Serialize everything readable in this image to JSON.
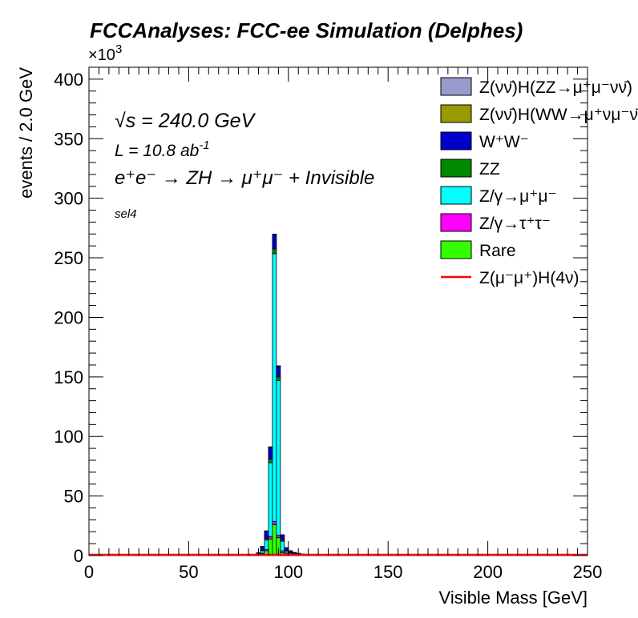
{
  "title": "FCCAnalyses: FCC-ee Simulation (Delphes)",
  "annotations": {
    "sqrt_s_symbol": "√s",
    "sqrt_s_value": " = 240.0 GeV",
    "lumi_label": "L = 10.8 ab",
    "lumi_exp": "-1",
    "process_text": "e⁺e⁻ → ZH → μ⁺μ⁻ + Invisible",
    "selection": "sel4"
  },
  "chart_data": {
    "type": "bar",
    "stacked": true,
    "xlabel": "Visible Mass [GeV]",
    "ylabel": "events / 2.0 GeV",
    "y_multiplier": "×10",
    "y_multiplier_exp": "3",
    "xlim": [
      0,
      250
    ],
    "ylim": [
      0,
      410000
    ],
    "bin_width": 2,
    "x_ticks": [
      0,
      50,
      100,
      150,
      200,
      250
    ],
    "y_ticks": [
      0,
      50,
      100,
      150,
      200,
      250,
      300,
      350,
      400
    ],
    "y_tick_scale": 1000,
    "x": [
      84,
      86,
      88,
      90,
      92,
      94,
      96,
      98,
      100,
      102,
      104,
      106,
      108,
      110,
      112
    ],
    "series": [
      {
        "name": "Rare",
        "color": "#33ff00",
        "values": [
          500,
          1500,
          4000,
          14000,
          26000,
          15000,
          2500,
          1200,
          800,
          500,
          400,
          300,
          200,
          150,
          100
        ]
      },
      {
        "name": "Z/γ→τ⁺τ⁻",
        "color": "#ff00ff",
        "values": [
          200,
          500,
          1000,
          2000,
          2500,
          2000,
          1500,
          1000,
          600,
          400,
          300,
          200,
          150,
          100,
          80
        ]
      },
      {
        "name": "Z/γ→μ⁺μ⁻",
        "color": "#00ffff",
        "values": [
          300,
          2000,
          8000,
          62000,
          225000,
          130000,
          8000,
          1500,
          800,
          500,
          300,
          200,
          150,
          100,
          80
        ]
      },
      {
        "name": "ZZ",
        "color": "#008800",
        "values": [
          200,
          500,
          1500,
          3000,
          4000,
          3000,
          1200,
          800,
          500,
          300,
          200,
          150,
          100,
          80,
          50
        ]
      },
      {
        "name": "W⁺W⁻",
        "color": "#0000cc",
        "values": [
          1000,
          3000,
          6000,
          10000,
          12000,
          9000,
          4000,
          2000,
          1200,
          800,
          600,
          400,
          300,
          200,
          150
        ]
      },
      {
        "name": "Z(νν̄)H(WW→μ⁺νμ⁻ν̄)",
        "color": "#999900",
        "values": [
          50,
          100,
          150,
          200,
          250,
          200,
          150,
          100,
          80,
          60,
          50,
          40,
          30,
          20,
          20
        ]
      },
      {
        "name": "Z(νν̄)H(ZZ→μ⁺μ⁻νν̄)",
        "color": "#9999cc",
        "values": [
          20,
          40,
          60,
          80,
          100,
          80,
          60,
          40,
          30,
          20,
          20,
          10,
          10,
          10,
          10
        ]
      }
    ],
    "signal_line": {
      "name": "Z(μ⁻μ⁺)H(4ν)",
      "color": "#ff0000",
      "value": 0
    },
    "legend": {
      "position": "top-right",
      "entries": [
        {
          "label": "Z(νν̄)H(ZZ→μ⁺μ⁻νν̄)",
          "color": "#9999cc",
          "style": "box"
        },
        {
          "label": "Z(νν̄)H(WW→μ⁺νμ⁻ν̄)",
          "color": "#999900",
          "style": "box"
        },
        {
          "label": "W⁺W⁻",
          "color": "#0000cc",
          "style": "box"
        },
        {
          "label": "ZZ",
          "color": "#008800",
          "style": "box"
        },
        {
          "label": "Z/γ→μ⁺μ⁻",
          "color": "#00ffff",
          "style": "box"
        },
        {
          "label": "Z/γ→τ⁺τ⁻",
          "color": "#ff00ff",
          "style": "box"
        },
        {
          "label": "Rare",
          "color": "#33ff00",
          "style": "box"
        },
        {
          "label": "Z(μ⁻μ⁺)H(4ν)",
          "color": "#ff0000",
          "style": "line"
        }
      ]
    }
  }
}
